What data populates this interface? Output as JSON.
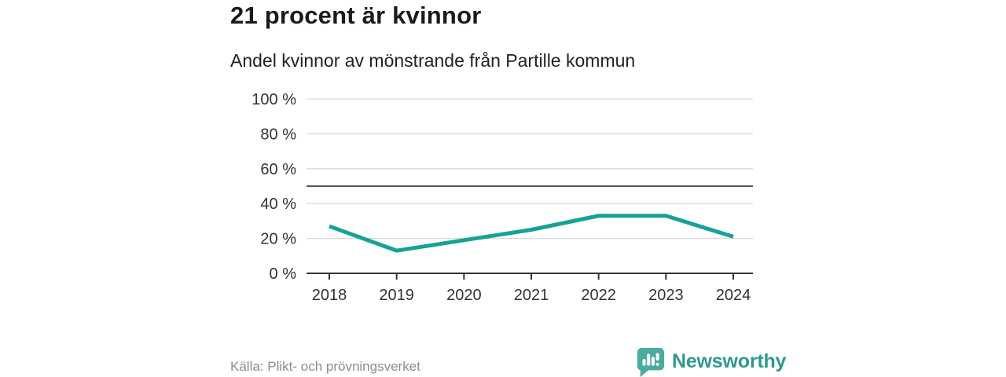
{
  "header": {
    "title": "21 procent är kvinnor",
    "subtitle": "Andel kvinnor av mönstrande från Partille kommun"
  },
  "footer": {
    "source": "Källa: Plikt- och prövningsverket",
    "logo_text": "Newsworthy",
    "logo_icon": "bar-chart-speech-bubble-icon"
  },
  "colors": {
    "line": "#16a296",
    "grid": "#d9d9d9",
    "axis": "#333333",
    "refline": "#555555",
    "tick_label": "#333333",
    "source_text": "#8c8c8c",
    "logo_icon": "#4cab9f",
    "logo_text": "#2f998d"
  },
  "chart_data": {
    "type": "line",
    "title": "21 procent är kvinnor",
    "subtitle": "Andel kvinnor av mönstrande från Partille kommun",
    "categories": [
      "2018",
      "2019",
      "2020",
      "2021",
      "2022",
      "2023",
      "2024"
    ],
    "series": [
      {
        "name": "Andel kvinnor av mönstrande",
        "values": [
          27,
          13,
          19,
          25,
          33,
          33,
          21
        ]
      }
    ],
    "unit": "%",
    "xlabel": "",
    "ylabel": "",
    "ylim": [
      0,
      100
    ],
    "yticks": [
      0,
      20,
      40,
      60,
      80,
      100
    ],
    "ytick_labels": [
      "0 %",
      "20 %",
      "40 %",
      "60 %",
      "80 %",
      "100 %"
    ],
    "reference_line": 50,
    "grid": true,
    "legend": "none"
  }
}
